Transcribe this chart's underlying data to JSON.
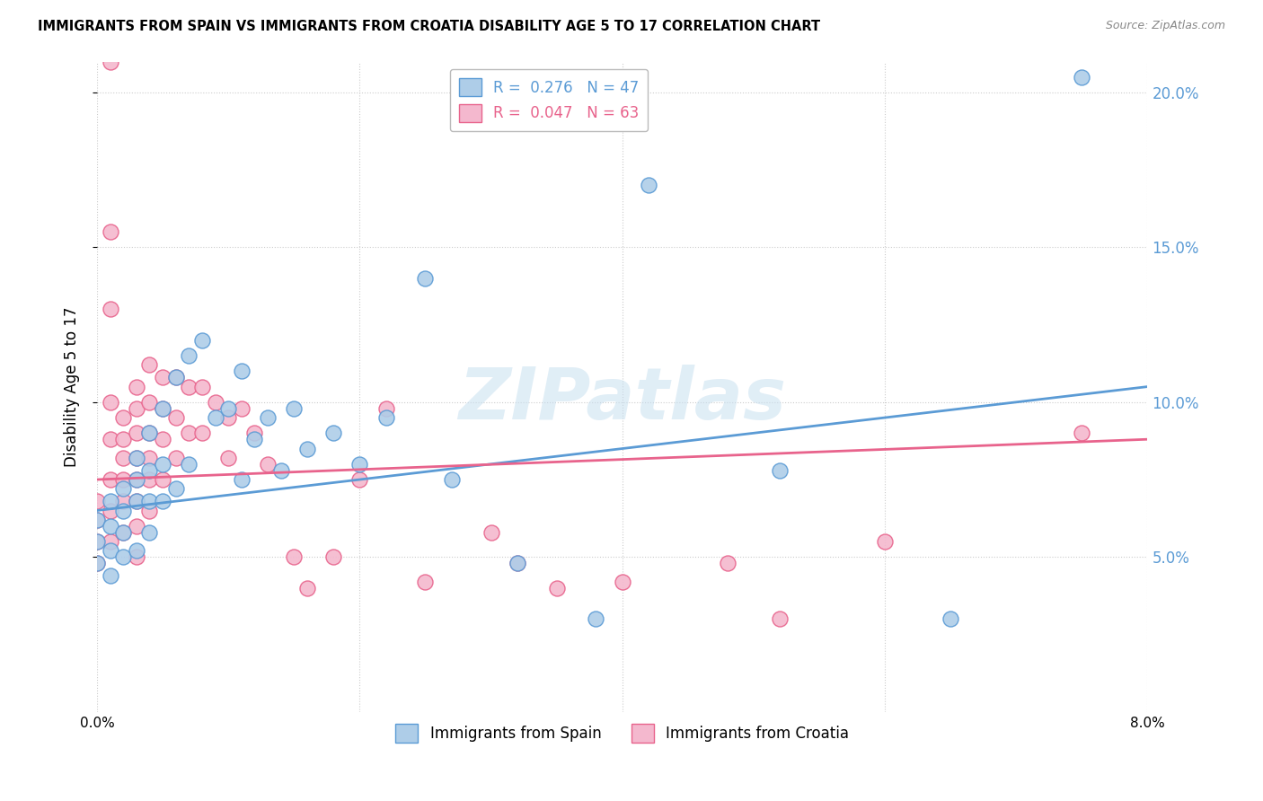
{
  "title": "IMMIGRANTS FROM SPAIN VS IMMIGRANTS FROM CROATIA DISABILITY AGE 5 TO 17 CORRELATION CHART",
  "source": "Source: ZipAtlas.com",
  "ylabel": "Disability Age 5 to 17",
  "xlim": [
    0.0,
    0.08
  ],
  "ylim": [
    0.0,
    0.21
  ],
  "ytick_vals": [
    0.05,
    0.1,
    0.15,
    0.2
  ],
  "ytick_labels": [
    "5.0%",
    "10.0%",
    "15.0%",
    "20.0%"
  ],
  "xtick_vals": [
    0.0,
    0.02,
    0.04,
    0.06,
    0.08
  ],
  "xtick_labels": [
    "0.0%",
    "",
    "",
    "",
    "8.0%"
  ],
  "watermark": "ZIPatlas",
  "spain_color": "#aecde8",
  "spain_edge_color": "#5b9bd5",
  "croatia_color": "#f4b8ce",
  "croatia_edge_color": "#e8638c",
  "trendline_spain_color": "#5b9bd5",
  "trendline_croatia_color": "#e8638c",
  "trendline_spain_x0": 0.0,
  "trendline_spain_y0": 0.065,
  "trendline_spain_x1": 0.08,
  "trendline_spain_y1": 0.105,
  "trendline_croatia_x0": 0.0,
  "trendline_croatia_y0": 0.075,
  "trendline_croatia_x1": 0.08,
  "trendline_croatia_y1": 0.088,
  "spain_points_x": [
    0.0,
    0.0,
    0.0,
    0.001,
    0.001,
    0.001,
    0.001,
    0.002,
    0.002,
    0.002,
    0.002,
    0.003,
    0.003,
    0.003,
    0.003,
    0.004,
    0.004,
    0.004,
    0.004,
    0.005,
    0.005,
    0.005,
    0.006,
    0.006,
    0.007,
    0.007,
    0.008,
    0.009,
    0.01,
    0.011,
    0.011,
    0.012,
    0.013,
    0.014,
    0.015,
    0.016,
    0.018,
    0.02,
    0.022,
    0.025,
    0.027,
    0.032,
    0.038,
    0.042,
    0.052,
    0.065,
    0.075
  ],
  "spain_points_y": [
    0.062,
    0.055,
    0.048,
    0.068,
    0.06,
    0.052,
    0.044,
    0.072,
    0.065,
    0.058,
    0.05,
    0.082,
    0.075,
    0.068,
    0.052,
    0.09,
    0.078,
    0.068,
    0.058,
    0.098,
    0.08,
    0.068,
    0.108,
    0.072,
    0.115,
    0.08,
    0.12,
    0.095,
    0.098,
    0.11,
    0.075,
    0.088,
    0.095,
    0.078,
    0.098,
    0.085,
    0.09,
    0.08,
    0.095,
    0.14,
    0.075,
    0.048,
    0.03,
    0.17,
    0.078,
    0.03,
    0.205
  ],
  "croatia_points_x": [
    0.0,
    0.0,
    0.0,
    0.0,
    0.001,
    0.001,
    0.001,
    0.001,
    0.001,
    0.001,
    0.001,
    0.001,
    0.002,
    0.002,
    0.002,
    0.002,
    0.002,
    0.002,
    0.003,
    0.003,
    0.003,
    0.003,
    0.003,
    0.003,
    0.003,
    0.003,
    0.004,
    0.004,
    0.004,
    0.004,
    0.004,
    0.004,
    0.005,
    0.005,
    0.005,
    0.005,
    0.006,
    0.006,
    0.006,
    0.007,
    0.007,
    0.008,
    0.008,
    0.009,
    0.01,
    0.01,
    0.011,
    0.012,
    0.013,
    0.015,
    0.016,
    0.018,
    0.02,
    0.022,
    0.025,
    0.03,
    0.032,
    0.035,
    0.04,
    0.048,
    0.052,
    0.06,
    0.075
  ],
  "croatia_points_y": [
    0.068,
    0.062,
    0.055,
    0.048,
    0.21,
    0.155,
    0.13,
    0.1,
    0.088,
    0.075,
    0.065,
    0.055,
    0.095,
    0.088,
    0.082,
    0.075,
    0.068,
    0.058,
    0.105,
    0.098,
    0.09,
    0.082,
    0.075,
    0.068,
    0.06,
    0.05,
    0.112,
    0.1,
    0.09,
    0.082,
    0.075,
    0.065,
    0.108,
    0.098,
    0.088,
    0.075,
    0.108,
    0.095,
    0.082,
    0.105,
    0.09,
    0.105,
    0.09,
    0.1,
    0.095,
    0.082,
    0.098,
    0.09,
    0.08,
    0.05,
    0.04,
    0.05,
    0.075,
    0.098,
    0.042,
    0.058,
    0.048,
    0.04,
    0.042,
    0.048,
    0.03,
    0.055,
    0.09
  ]
}
